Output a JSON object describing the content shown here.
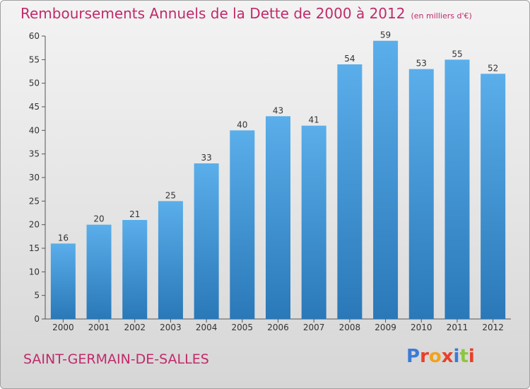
{
  "title": "Remboursements Annuels de la Dette de 2000 à 2012",
  "unit": "(en milliers d'€)",
  "place": "SAINT-GERMAIN-DE-SALLES",
  "logo": {
    "text": "Proxiti",
    "colors": [
      "#3b7bd6",
      "#e8402a",
      "#f2a21c",
      "#e8402a",
      "#3b7bd6",
      "#8cc63f",
      "#e8402a"
    ]
  },
  "colors": {
    "bar_top": "#5aaeea",
    "bar_bottom": "#2a78b8",
    "title": "#c02a6a",
    "axis": "#555555"
  },
  "chart_data": {
    "type": "bar",
    "categories": [
      "2000",
      "2001",
      "2002",
      "2003",
      "2004",
      "2005",
      "2006",
      "2007",
      "2008",
      "2009",
      "2010",
      "2011",
      "2012"
    ],
    "values": [
      16,
      20,
      21,
      25,
      33,
      40,
      43,
      41,
      54,
      59,
      53,
      55,
      52
    ],
    "ylim": [
      0,
      60
    ],
    "yticks": [
      0,
      5,
      10,
      15,
      20,
      25,
      30,
      35,
      40,
      45,
      50,
      55,
      60
    ],
    "grid": false
  }
}
